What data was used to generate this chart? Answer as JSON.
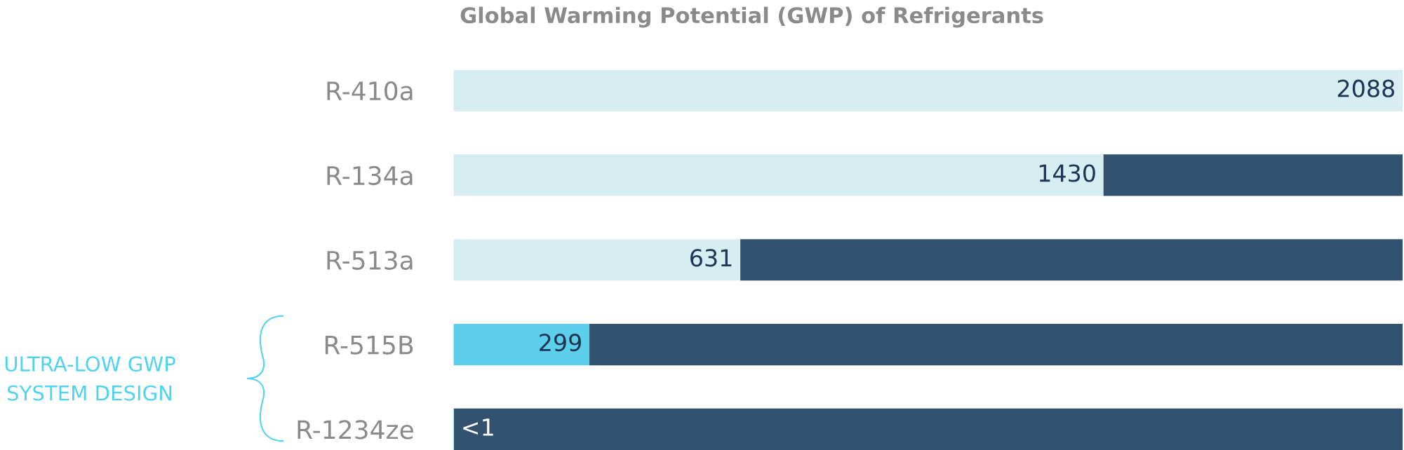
{
  "chart_data": {
    "type": "bar",
    "orientation": "horizontal",
    "stacked": true,
    "title": "Global Warming Potential (GWP) of Refrigerants",
    "categories": [
      "R-410a",
      "R-134a",
      "R-513a",
      "R-515B",
      "R-1234ze"
    ],
    "xlim": [
      0,
      2088
    ],
    "tick_labels": "y",
    "series": [
      {
        "colors": [
          "#d6edf2",
          "#d6edf2",
          "#d6edf2",
          "#5ecfea",
          "#5ecfea"
        ],
        "values": [
          2088,
          1430,
          631,
          299,
          1
        ],
        "value_labels": [
          "2088",
          "1430",
          "631",
          "299",
          "<1"
        ]
      },
      {
        "color": "#32526f",
        "values": [
          null,
          658,
          1457,
          1789,
          2087
        ]
      }
    ],
    "annotations": [
      "ULTRA-LOW GWP\nSYSTEM DESIGN"
    ],
    "grid": false,
    "legend": false
  }
}
